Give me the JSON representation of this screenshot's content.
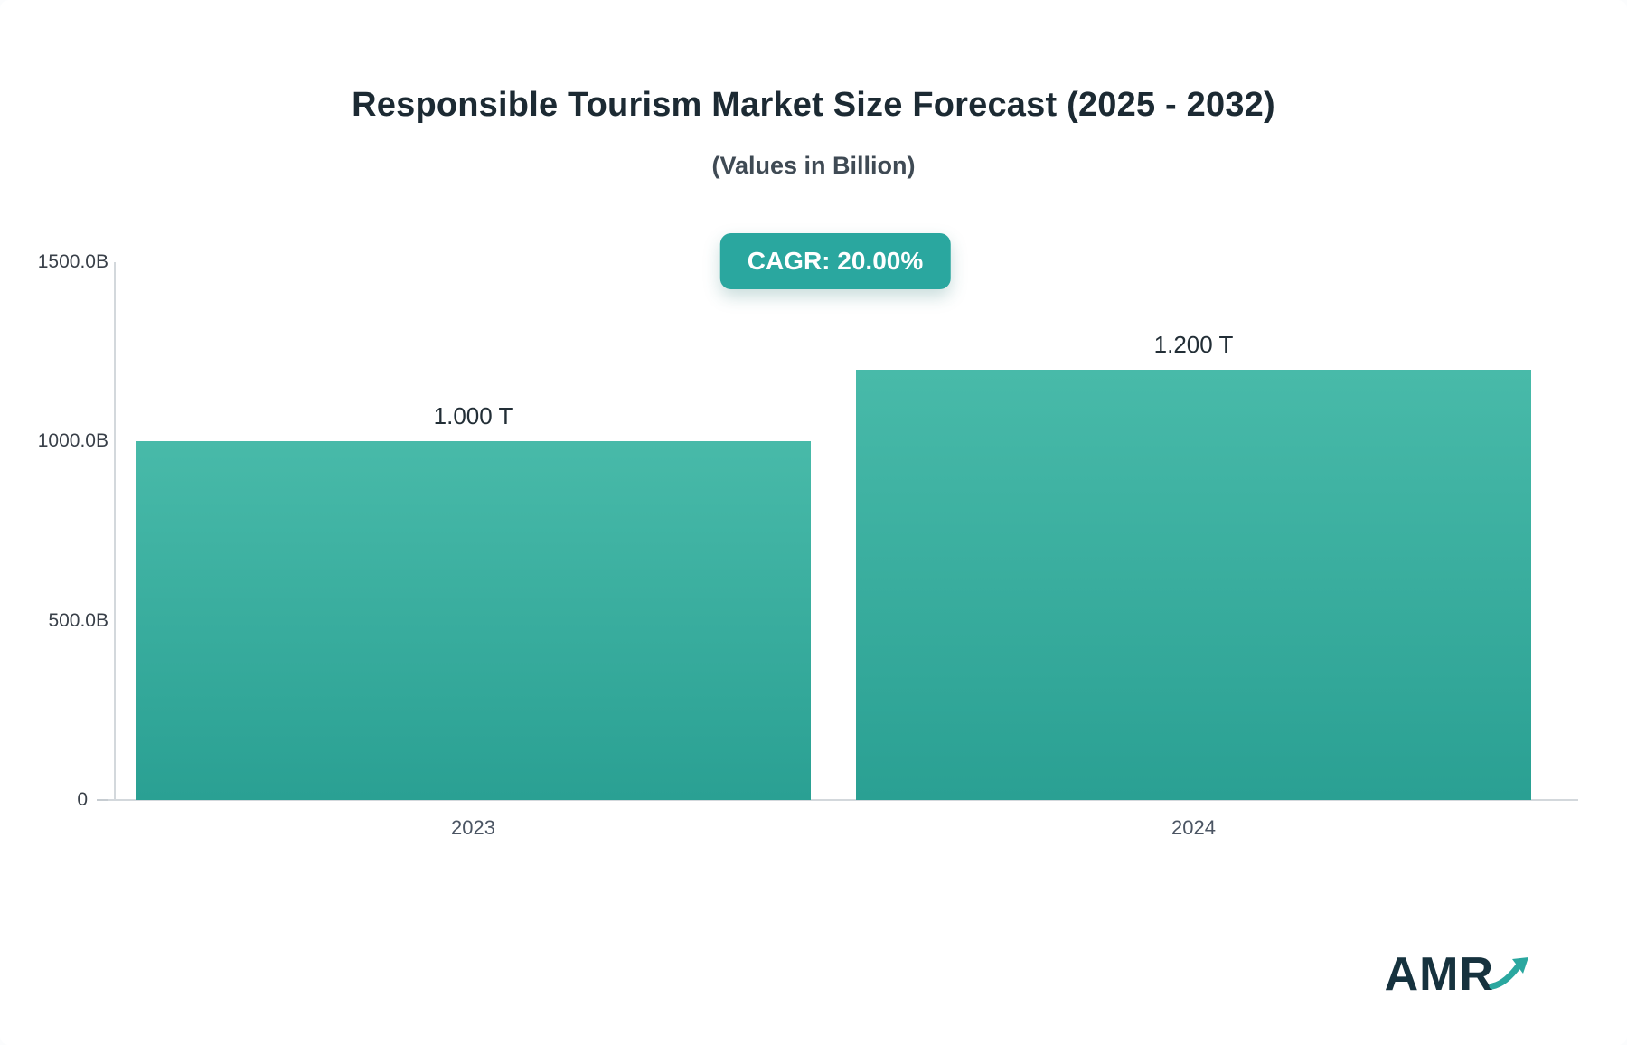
{
  "chart": {
    "title": "Responsible Tourism Market Size Forecast (2025 - 2032)",
    "subtitle": "(Values in Billion)",
    "cagr_label": "CAGR: 20.00%"
  },
  "chart_data": {
    "type": "bar",
    "title": "Responsible Tourism Market Size Forecast (2025 - 2032)",
    "subtitle": "(Values in Billion)",
    "unit": "Billion",
    "categories": [
      "2023",
      "2024"
    ],
    "values": [
      1000,
      1200
    ],
    "value_labels": [
      "1.000 T",
      "1.200 T"
    ],
    "cagr": "20.00%",
    "ylim": [
      0,
      1500
    ],
    "yticks": [
      {
        "value": 1500,
        "label": "1500.0B"
      },
      {
        "value": 1000,
        "label": "1000.0B"
      },
      {
        "value": 500,
        "label": "500.0B"
      },
      {
        "value": 0,
        "label": "0"
      }
    ],
    "grid": false,
    "legend": "none",
    "bar_color_top": "#48baa9",
    "bar_color_bottom": "#2aa093",
    "accent_color": "#2aa79f"
  },
  "logo": {
    "text": "AMR"
  }
}
